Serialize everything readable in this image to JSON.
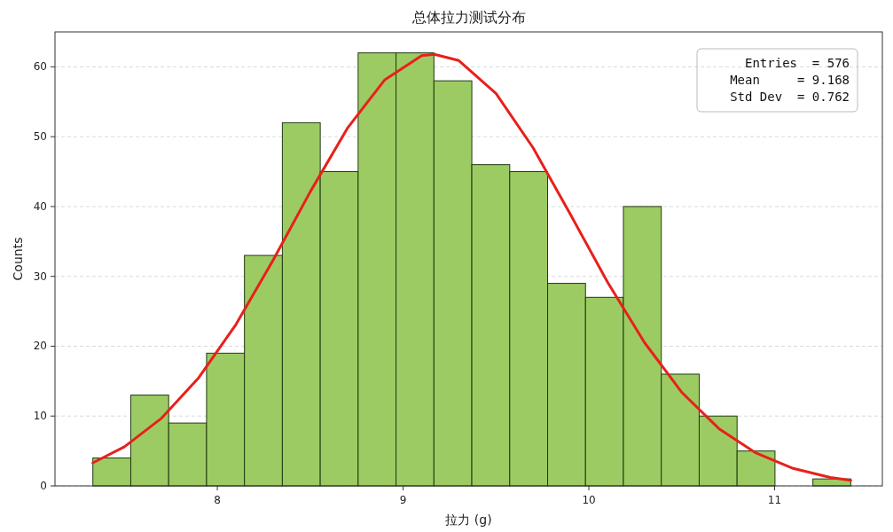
{
  "chart_data": {
    "type": "histogram",
    "title": "总体拉力测试分布",
    "xlabel": "拉力 (g)",
    "ylabel": "Counts",
    "bins": [
      7.33,
      7.534,
      7.738,
      7.942,
      8.146,
      8.35,
      8.554,
      8.758,
      8.962,
      9.166,
      9.37,
      9.574,
      9.778,
      9.982,
      10.186,
      10.39,
      10.594,
      10.798,
      11.002,
      11.206,
      11.41
    ],
    "series": [
      {
        "type": "histogram",
        "color": "#9dcb63",
        "values": [
          4,
          13,
          9,
          19,
          33,
          52,
          45,
          62,
          62,
          58,
          46,
          45,
          29,
          27,
          40,
          16,
          10,
          5,
          0,
          1
        ]
      },
      {
        "type": "line",
        "color": "#e8201b",
        "x": [
          7.33,
          7.5,
          7.7,
          7.9,
          8.1,
          8.3,
          8.5,
          8.7,
          8.9,
          9.1,
          9.168,
          9.3,
          9.5,
          9.7,
          9.9,
          10.1,
          10.3,
          10.5,
          10.7,
          10.9,
          11.1,
          11.3,
          11.41
        ],
        "values": [
          3.3,
          5.6,
          9.7,
          15.5,
          23.1,
          32.3,
          42.1,
          51.2,
          58.1,
          61.6,
          61.8,
          60.9,
          56.2,
          48.4,
          38.9,
          29.2,
          20.5,
          13.4,
          8.2,
          4.7,
          2.5,
          1.2,
          0.8
        ]
      }
    ],
    "xlim": [
      7.126,
      11.58
    ],
    "ylim": [
      0,
      65
    ],
    "xticks": [
      8,
      9,
      10,
      11
    ],
    "yticks": [
      0,
      10,
      20,
      30,
      40,
      50,
      60
    ],
    "grid": "y",
    "annotations": [
      "Entries  = 576",
      "Mean     = 9.168",
      "Std Dev  = 0.762"
    ]
  }
}
